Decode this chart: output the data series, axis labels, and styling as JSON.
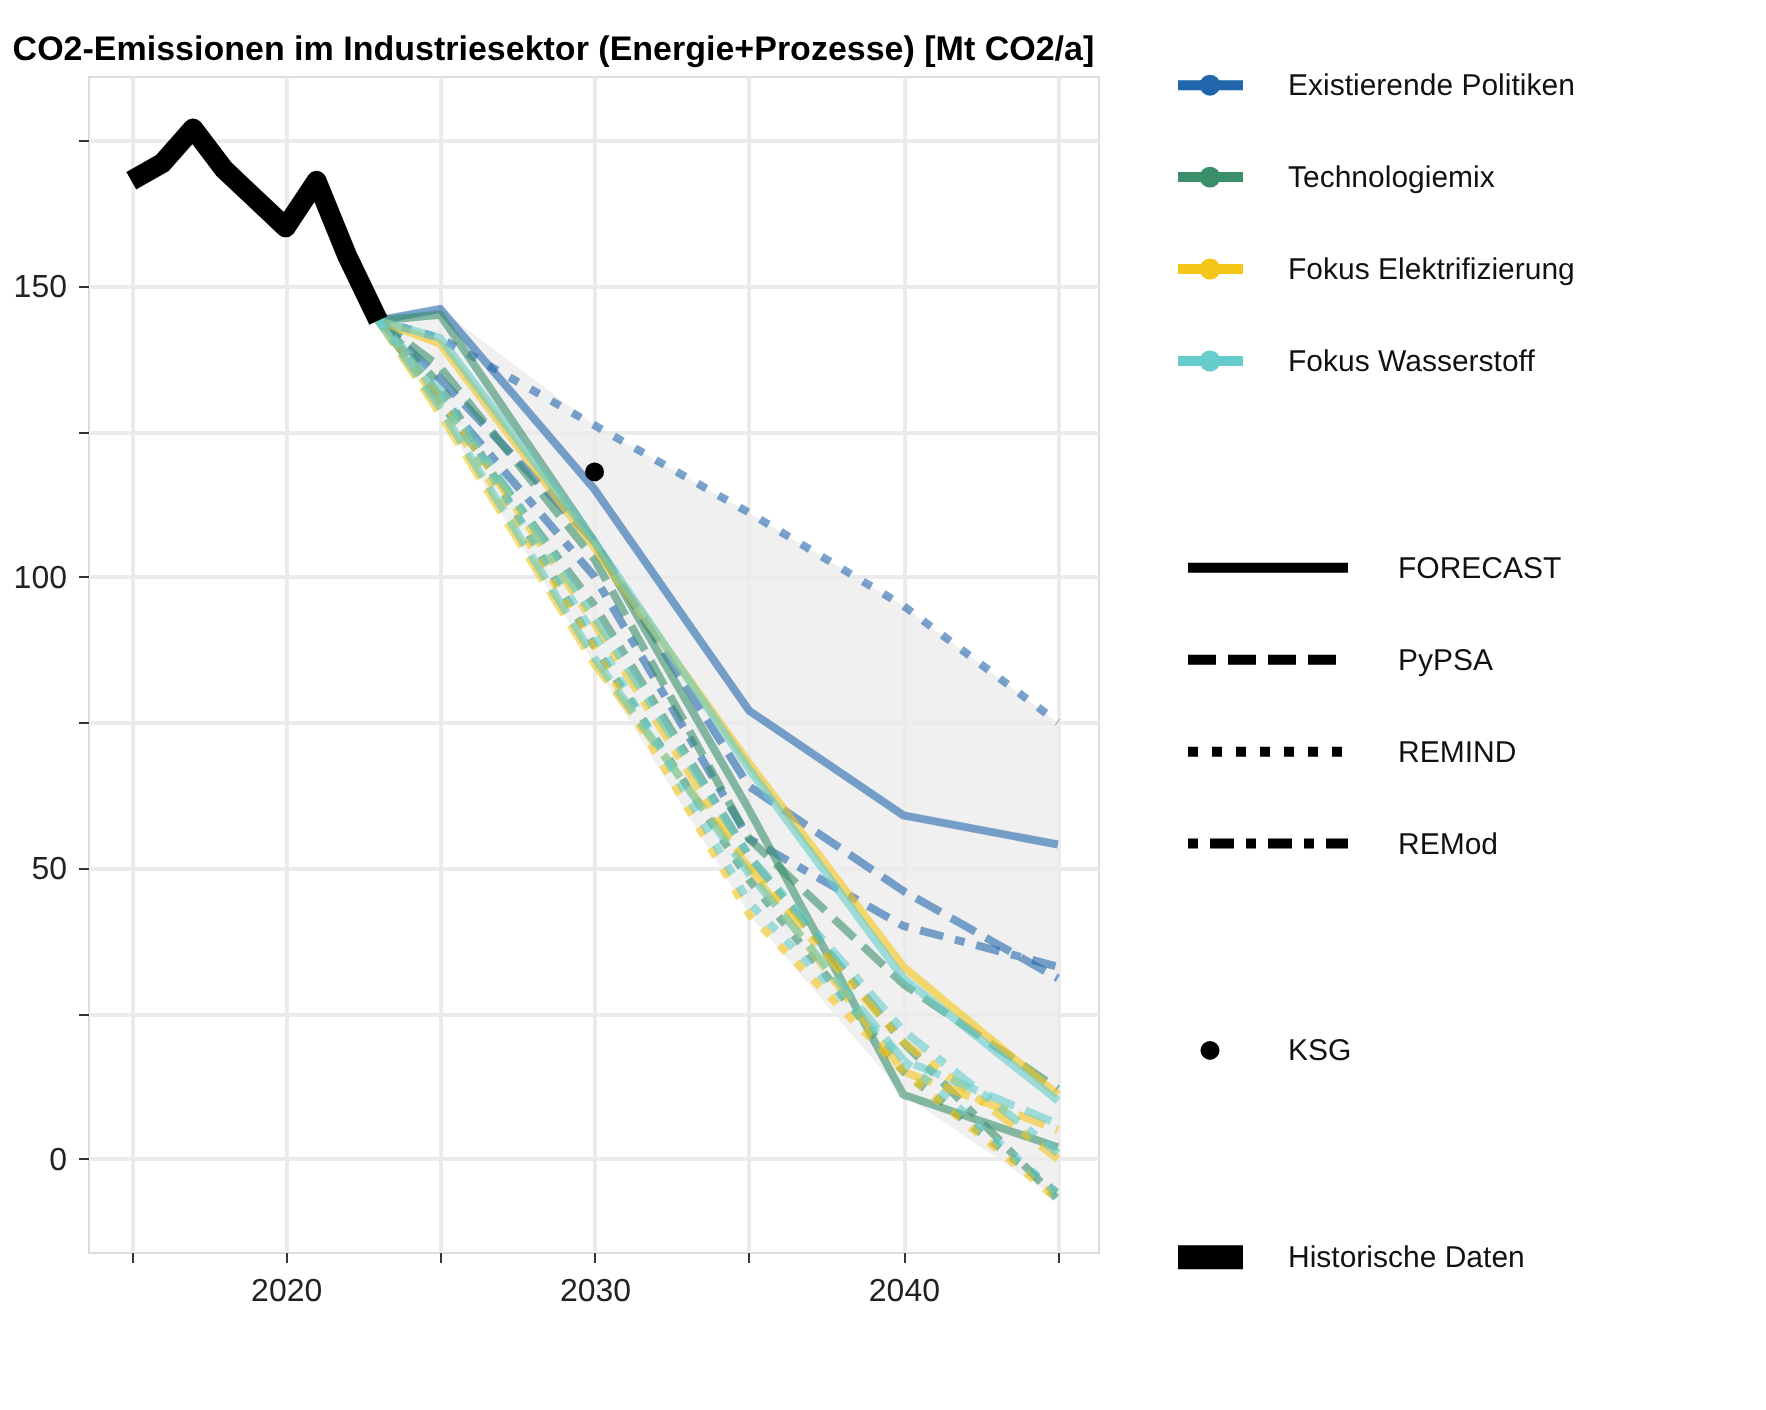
{
  "chart_data": {
    "type": "line",
    "title": "CO2-Emissionen im Industriesektor (Energie+Prozesse) [Mt CO2/a]",
    "xlim": [
      2013.6,
      2046.3
    ],
    "ylim": [
      -16,
      186
    ],
    "xticks": [
      {
        "value": 2015,
        "label": null
      },
      2020,
      {
        "value": 2025,
        "label": null
      },
      2030,
      {
        "value": 2035,
        "label": null
      },
      2040,
      {
        "value": 2045,
        "label": null
      }
    ],
    "yticks": [
      0,
      {
        "value": 25,
        "label": null
      },
      50,
      {
        "value": 75,
        "label": null
      },
      100,
      {
        "value": 125,
        "label": null
      },
      150,
      {
        "value": 175,
        "label": null
      }
    ],
    "grid": true,
    "legend": "right",
    "annotations": [
      "FORECAST",
      "PyPSA",
      "REMIND",
      "REMod"
    ],
    "series": [
      {
        "name": "Existierende Politiken",
        "color": "#2166ac",
        "line_style": "solid",
        "x": [
          2023,
          2025,
          2030,
          2035,
          2040,
          2045
        ],
        "values": [
          144,
          146,
          115,
          77,
          59,
          54
        ],
        "lower": [
          144,
          128,
          85,
          42,
          11,
          -7
        ],
        "upper": [
          144,
          146,
          126,
          111,
          95,
          75
        ]
      },
      {
        "color": "#2166ac",
        "line_style": "dashed",
        "x": [
          2023,
          2025,
          2030,
          2035,
          2040,
          2045
        ],
        "values": [
          144,
          134,
          106,
          64,
          46,
          31
        ]
      },
      {
        "color": "#2166ac",
        "line_style": "dotted",
        "x": [
          2023,
          2025,
          2030,
          2035,
          2040,
          2045
        ],
        "values": [
          144,
          141,
          126,
          111,
          95,
          75
        ]
      },
      {
        "color": "#2166ac",
        "line_style": "dashdot",
        "x": [
          2023,
          2025,
          2030,
          2035,
          2040,
          2045
        ],
        "values": [
          144,
          131,
          100,
          55,
          40,
          33
        ]
      },
      {
        "name": "Technologiemix",
        "color": "#3a8f6a",
        "line_style": "solid",
        "x": [
          2023,
          2025,
          2030,
          2035,
          2040,
          2045
        ],
        "values": [
          144,
          145,
          106,
          60,
          11,
          2
        ]
      },
      {
        "color": "#3a8f6a",
        "line_style": "dashed",
        "x": [
          2023,
          2025,
          2030,
          2035,
          2040,
          2045
        ],
        "values": [
          144,
          136,
          103,
          55,
          30,
          12
        ]
      },
      {
        "color": "#3a8f6a",
        "line_style": "dotted",
        "x": [
          2023,
          2025,
          2030,
          2035,
          2040,
          2045
        ],
        "values": [
          144,
          133,
          88,
          48,
          15,
          -6
        ]
      },
      {
        "color": "#3a8f6a",
        "line_style": "dashdot",
        "x": [
          2023,
          2025,
          2030,
          2035,
          2040,
          2045
        ],
        "values": [
          144,
          130,
          95,
          52,
          20,
          -7
        ]
      },
      {
        "name": "Fokus Elektrifizierung",
        "color": "#f5c518",
        "line_style": "solid",
        "x": [
          2023,
          2025,
          2030,
          2035,
          2040,
          2045
        ],
        "values": [
          144,
          140,
          105,
          68,
          33,
          11
        ]
      },
      {
        "color": "#f5c518",
        "line_style": "dashed",
        "x": [
          2023,
          2025,
          2030,
          2035,
          2040,
          2045
        ],
        "values": [
          144,
          128,
          85,
          50,
          15,
          5
        ]
      },
      {
        "color": "#f5c518",
        "line_style": "dotted",
        "x": [
          2023,
          2025,
          2030,
          2035,
          2040,
          2045
        ],
        "values": [
          144,
          130,
          88,
          42,
          15,
          -7
        ]
      },
      {
        "color": "#f5c518",
        "line_style": "dashdot",
        "x": [
          2023,
          2025,
          2030,
          2035,
          2040,
          2045
        ],
        "values": [
          144,
          131,
          92,
          50,
          20,
          0
        ]
      },
      {
        "name": "Fokus Wasserstoff",
        "color": "#66cccc",
        "line_style": "solid",
        "x": [
          2023,
          2025,
          2030,
          2035,
          2040,
          2045
        ],
        "values": [
          144,
          141,
          106,
          67,
          31,
          10
        ]
      },
      {
        "color": "#66cccc",
        "line_style": "dashed",
        "x": [
          2023,
          2025,
          2030,
          2035,
          2040,
          2045
        ],
        "values": [
          144,
          129,
          86,
          49,
          17,
          6
        ]
      },
      {
        "color": "#66cccc",
        "line_style": "dotted",
        "x": [
          2023,
          2025,
          2030,
          2035,
          2040,
          2045
        ],
        "values": [
          144,
          131,
          90,
          44,
          17,
          -6
        ]
      },
      {
        "color": "#66cccc",
        "line_style": "dashdot",
        "x": [
          2023,
          2025,
          2030,
          2035,
          2040,
          2045
        ],
        "values": [
          144,
          132,
          93,
          52,
          22,
          1
        ]
      },
      {
        "type": "scatter",
        "name": "KSG",
        "color": "#000000",
        "marker": "circle",
        "x": [
          2030
        ],
        "values": [
          118
        ]
      },
      {
        "name": "Historische Daten",
        "color": "#000000",
        "line_style": "solid",
        "x": [
          2015,
          2016,
          2017,
          2018,
          2019,
          2020,
          2021,
          2022,
          2023
        ],
        "values": [
          168,
          171,
          177,
          170,
          165,
          160,
          168,
          155,
          144
        ]
      }
    ]
  }
}
